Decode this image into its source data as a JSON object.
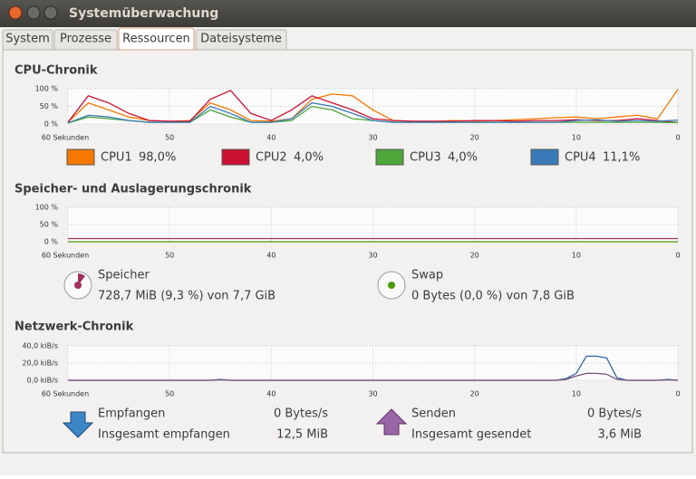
{
  "window": {
    "title": "Systemüberwachung"
  },
  "tabs": {
    "items": [
      "System",
      "Prozesse",
      "Ressourcen",
      "Dateisysteme"
    ],
    "active": 2
  },
  "chart_data": [
    {
      "type": "line",
      "title": "CPU-Chronik",
      "xlim": [
        60,
        0
      ],
      "ylim": [
        0,
        100
      ],
      "xticks": [
        {
          "value": 60,
          "label": "60 Sekunden"
        },
        50,
        40,
        30,
        20,
        10,
        0
      ],
      "yticks": [
        {
          "value": 100,
          "label": "100 %"
        },
        {
          "value": 50,
          "label": "50 %"
        },
        {
          "value": 0,
          "label": "0 %"
        }
      ],
      "grid": true,
      "x": [
        60,
        58,
        56,
        54,
        52,
        50,
        48,
        46,
        44,
        42,
        40,
        38,
        36,
        34,
        32,
        30,
        28,
        26,
        24,
        22,
        20,
        18,
        16,
        14,
        12,
        10,
        8,
        6,
        4,
        2,
        0
      ],
      "series": [
        {
          "name": "CPU1",
          "readout": "98,0%",
          "color": "#f57900",
          "values": [
            5,
            60,
            40,
            20,
            10,
            8,
            10,
            60,
            40,
            10,
            8,
            15,
            70,
            85,
            80,
            40,
            10,
            8,
            8,
            10,
            8,
            10,
            12,
            15,
            18,
            20,
            15,
            20,
            25,
            15,
            98
          ]
        },
        {
          "name": "CPU2",
          "readout": "4,0%",
          "color": "#cc1033",
          "values": [
            5,
            80,
            60,
            30,
            10,
            8,
            8,
            70,
            95,
            30,
            10,
            40,
            80,
            60,
            40,
            15,
            10,
            8,
            8,
            8,
            10,
            10,
            8,
            10,
            10,
            12,
            10,
            10,
            15,
            10,
            4
          ]
        },
        {
          "name": "CPU3",
          "readout": "4,0%",
          "color": "#4ca63a",
          "values": [
            3,
            20,
            15,
            10,
            5,
            5,
            5,
            40,
            20,
            5,
            5,
            10,
            50,
            40,
            15,
            10,
            5,
            5,
            5,
            5,
            5,
            5,
            5,
            5,
            5,
            5,
            5,
            5,
            5,
            5,
            4
          ]
        },
        {
          "name": "CPU4",
          "readout": "11,1%",
          "color": "#3a7ab8",
          "values": [
            3,
            25,
            20,
            10,
            5,
            5,
            5,
            50,
            30,
            5,
            5,
            15,
            60,
            50,
            30,
            10,
            5,
            5,
            5,
            5,
            5,
            5,
            5,
            5,
            5,
            10,
            12,
            8,
            10,
            8,
            11
          ]
        }
      ]
    },
    {
      "type": "line",
      "title": "Speicher- und Auslagerungschronik",
      "xlim": [
        60,
        0
      ],
      "ylim": [
        0,
        100
      ],
      "xticks": [
        {
          "value": 60,
          "label": "60 Sekunden"
        },
        50,
        40,
        30,
        20,
        10,
        0
      ],
      "yticks": [
        {
          "value": 100,
          "label": "100 %"
        },
        {
          "value": 50,
          "label": "50 %"
        },
        {
          "value": 0,
          "label": "0 %"
        }
      ],
      "grid": true,
      "x": [
        60,
        0
      ],
      "series": [
        {
          "name": "Speicher",
          "detail": "728,7 MiB (9,3 %) von 7,7 GiB",
          "color": "#a0305e",
          "values": [
            9.3,
            9.3
          ]
        },
        {
          "name": "Swap",
          "detail": "0 Bytes (0,0 %) von 7,8 GiB",
          "color": "#4e9a06",
          "values": [
            0,
            0
          ]
        }
      ]
    },
    {
      "type": "line",
      "title": "Netzwerk-Chronik",
      "xlim": [
        60,
        0
      ],
      "ylim": [
        0,
        40
      ],
      "xticks": [
        {
          "value": 60,
          "label": "60 Sekunden"
        },
        50,
        40,
        30,
        20,
        10,
        0
      ],
      "yticks": [
        {
          "value": 40,
          "label": "40,0 kiB/s"
        },
        {
          "value": 20,
          "label": "20,0 kiB/s"
        },
        {
          "value": 0,
          "label": "0,0 kiB/s"
        }
      ],
      "grid": true,
      "x": [
        60,
        46,
        45,
        44,
        12,
        11,
        10,
        9,
        8,
        7,
        6,
        5,
        2,
        1,
        0
      ],
      "series": [
        {
          "name": "Empfangen",
          "rate": "0 Bytes/s",
          "total_label": "Insgesamt empfangen",
          "total": "12,5 MiB",
          "color": "#3465a4",
          "values": [
            0,
            0,
            1,
            0,
            0,
            2,
            8,
            28,
            28,
            26,
            3,
            0,
            0,
            1,
            0
          ]
        },
        {
          "name": "Senden",
          "rate": "0 Bytes/s",
          "total_label": "Insgesamt gesendet",
          "total": "3,6 MiB",
          "color": "#75507b",
          "values": [
            0,
            0,
            0.5,
            0,
            0,
            1,
            5,
            8,
            8,
            7,
            1,
            0,
            0,
            0.5,
            0
          ]
        }
      ]
    }
  ]
}
